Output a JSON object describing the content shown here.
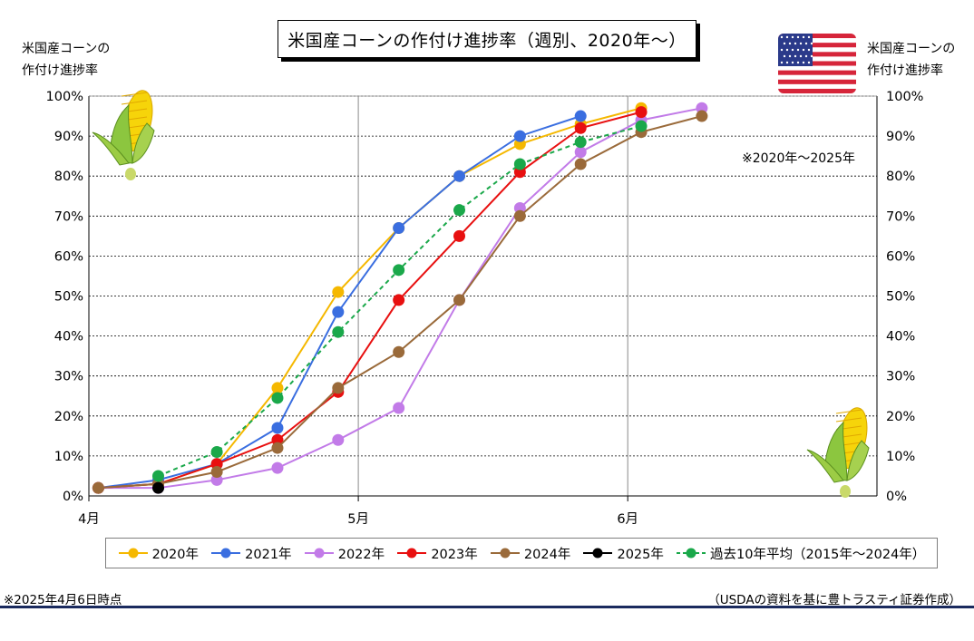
{
  "title": "米国産コーンの作付け進捗率（週別、2020年～）",
  "left_axis_title": [
    "米国産コーンの",
    "作付け進捗率"
  ],
  "right_axis_title": [
    "米国産コーンの",
    "作付け進捗率"
  ],
  "period_note": "※2020年～2025年",
  "footer_left": "※2025年4月6日時点",
  "footer_right": "（USDAの資料を基に豊トラスティ証券作成）",
  "icons": [
    "corn-icon",
    "us-flag-icon"
  ],
  "chart_data": {
    "type": "line",
    "x_unit": "week",
    "x_ticks": [
      {
        "label": "4月",
        "x": 0
      },
      {
        "label": "5月",
        "x": 4.0
      },
      {
        "label": "6月",
        "x": 8.0
      }
    ],
    "xlim": [
      0,
      11.7
    ],
    "ylim": [
      0,
      100
    ],
    "y_ticks": [
      0,
      10,
      20,
      30,
      40,
      50,
      60,
      70,
      80,
      90,
      100
    ],
    "y_tick_format": "%",
    "grid": {
      "horizontal": "dotted",
      "vertical": "solid at month ticks"
    },
    "legend_position": "bottom",
    "series": [
      {
        "name": "2020年",
        "color": "#f5b800",
        "dashed": false,
        "points": [
          [
            0.14,
            2
          ],
          [
            1.03,
            3
          ],
          [
            1.9,
            8
          ],
          [
            2.8,
            27
          ],
          [
            3.7,
            51
          ],
          [
            4.6,
            67
          ],
          [
            5.5,
            80
          ],
          [
            6.4,
            88
          ],
          [
            7.3,
            93
          ],
          [
            8.2,
            97
          ]
        ]
      },
      {
        "name": "2021年",
        "color": "#3a6ee0",
        "dashed": false,
        "points": [
          [
            0.14,
            2
          ],
          [
            1.03,
            4
          ],
          [
            1.9,
            8
          ],
          [
            2.8,
            17
          ],
          [
            3.7,
            46
          ],
          [
            4.6,
            67
          ],
          [
            5.5,
            80
          ],
          [
            6.4,
            90
          ],
          [
            7.3,
            95
          ]
        ]
      },
      {
        "name": "2022年",
        "color": "#c27be8",
        "dashed": false,
        "points": [
          [
            0.14,
            2
          ],
          [
            1.03,
            2
          ],
          [
            1.9,
            4
          ],
          [
            2.8,
            7
          ],
          [
            3.7,
            14
          ],
          [
            4.6,
            22
          ],
          [
            5.5,
            49
          ],
          [
            6.4,
            72
          ],
          [
            7.3,
            86
          ],
          [
            8.2,
            94
          ],
          [
            9.1,
            97
          ]
        ]
      },
      {
        "name": "2023年",
        "color": "#e81010",
        "dashed": false,
        "points": [
          [
            0.14,
            2
          ],
          [
            1.03,
            3
          ],
          [
            1.9,
            8
          ],
          [
            2.8,
            14
          ],
          [
            3.7,
            26
          ],
          [
            4.6,
            49
          ],
          [
            5.5,
            65
          ],
          [
            6.4,
            81
          ],
          [
            7.3,
            92
          ],
          [
            8.2,
            96
          ]
        ]
      },
      {
        "name": "2024年",
        "color": "#9a6a3a",
        "dashed": false,
        "points": [
          [
            0.14,
            2
          ],
          [
            1.03,
            3
          ],
          [
            1.9,
            6
          ],
          [
            2.8,
            12
          ],
          [
            3.7,
            27
          ],
          [
            4.6,
            36
          ],
          [
            5.5,
            49
          ],
          [
            6.4,
            70
          ],
          [
            7.3,
            83
          ],
          [
            8.2,
            91
          ],
          [
            9.1,
            95
          ]
        ]
      },
      {
        "name": "2025年",
        "color": "#000000",
        "dashed": false,
        "points": [
          [
            1.03,
            2
          ]
        ]
      },
      {
        "name": "過去10年平均（2015年～2024年）",
        "color": "#1aa84a",
        "dashed": true,
        "points": [
          [
            1.03,
            5
          ],
          [
            1.9,
            11
          ],
          [
            2.8,
            24.5
          ],
          [
            3.7,
            41
          ],
          [
            4.6,
            56.5
          ],
          [
            5.5,
            71.5
          ],
          [
            6.4,
            83
          ],
          [
            7.3,
            88.5
          ],
          [
            8.2,
            92.5
          ]
        ]
      }
    ]
  }
}
